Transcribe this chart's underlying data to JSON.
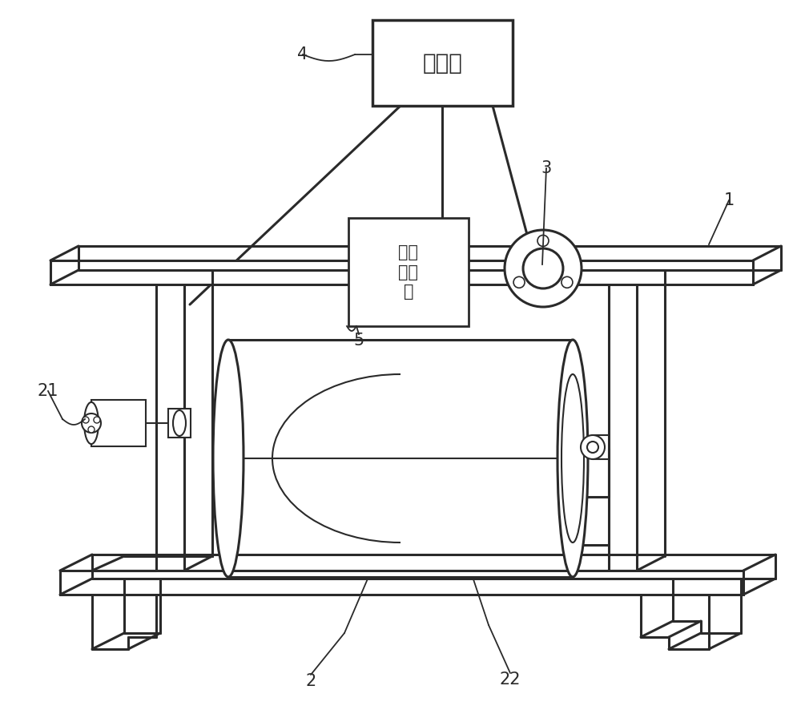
{
  "bg_color": "#ffffff",
  "line_color": "#2a2a2a",
  "lw": 2.2,
  "tlw": 1.5,
  "processor_text": "处理器",
  "sensor_text": "厚度\n传感\n器",
  "label_fs": 15
}
